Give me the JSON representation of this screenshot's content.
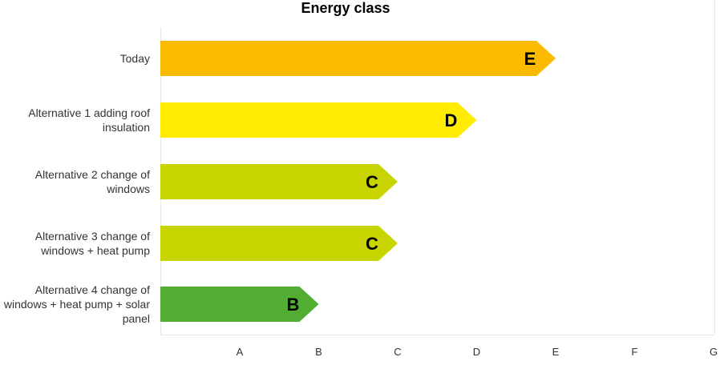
{
  "chart_data": {
    "type": "bar",
    "orientation": "horizontal",
    "title": "Energy class",
    "x_ticks": [
      "A",
      "B",
      "C",
      "D",
      "E",
      "F",
      "G"
    ],
    "categories": [
      [
        "Today"
      ],
      [
        "Alternative 1 adding roof",
        "insulation"
      ],
      [
        "Alternative 2 change of",
        "windows"
      ],
      [
        "Alternative 3 change of",
        "windows + heat pump"
      ],
      [
        "Alternative 4 change of",
        "windows + heat pump + solar",
        "panel"
      ]
    ],
    "values": [
      "E",
      "D",
      "C",
      "C",
      "B"
    ],
    "bar_colors": [
      "#F9BA00",
      "#FFEC00",
      "#C8D400",
      "#C8D400",
      "#52AE32"
    ],
    "grid": false,
    "legend": "none"
  }
}
